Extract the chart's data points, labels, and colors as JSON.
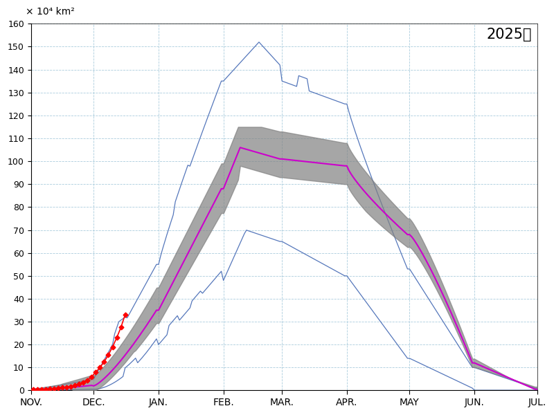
{
  "title": "2025年",
  "ylim": [
    0,
    160
  ],
  "yticks": [
    0,
    10,
    20,
    30,
    40,
    50,
    60,
    70,
    80,
    90,
    100,
    110,
    120,
    130,
    140,
    150,
    160
  ],
  "x_labels": [
    "NOV.",
    "DEC.",
    "JAN.",
    "FEB.",
    "MAR.",
    "APR.",
    "MAY",
    "JUN.",
    "JUL."
  ],
  "x_ticks": [
    0,
    30,
    61,
    92,
    120,
    151,
    181,
    212,
    242
  ],
  "total_days": 243,
  "mean_color": "#cc00cc",
  "band_color": "#808080",
  "minmax_color": "#5577bb",
  "red_color": "#ff0000",
  "bg_color": "#ffffff",
  "grid_color": "#aaccdd",
  "red_x": [
    1,
    3,
    5,
    7,
    9,
    11,
    13,
    15,
    17,
    19,
    21,
    23,
    25,
    27,
    29,
    31,
    33,
    35,
    37,
    39,
    41,
    43,
    45
  ],
  "red_y": [
    0.3,
    0.4,
    0.5,
    0.5,
    0.6,
    0.8,
    1.0,
    1.2,
    1.5,
    1.8,
    2.2,
    2.8,
    3.5,
    4.5,
    6.0,
    8.0,
    10.0,
    12.5,
    15.5,
    19.0,
    23.0,
    27.5,
    33.0
  ]
}
